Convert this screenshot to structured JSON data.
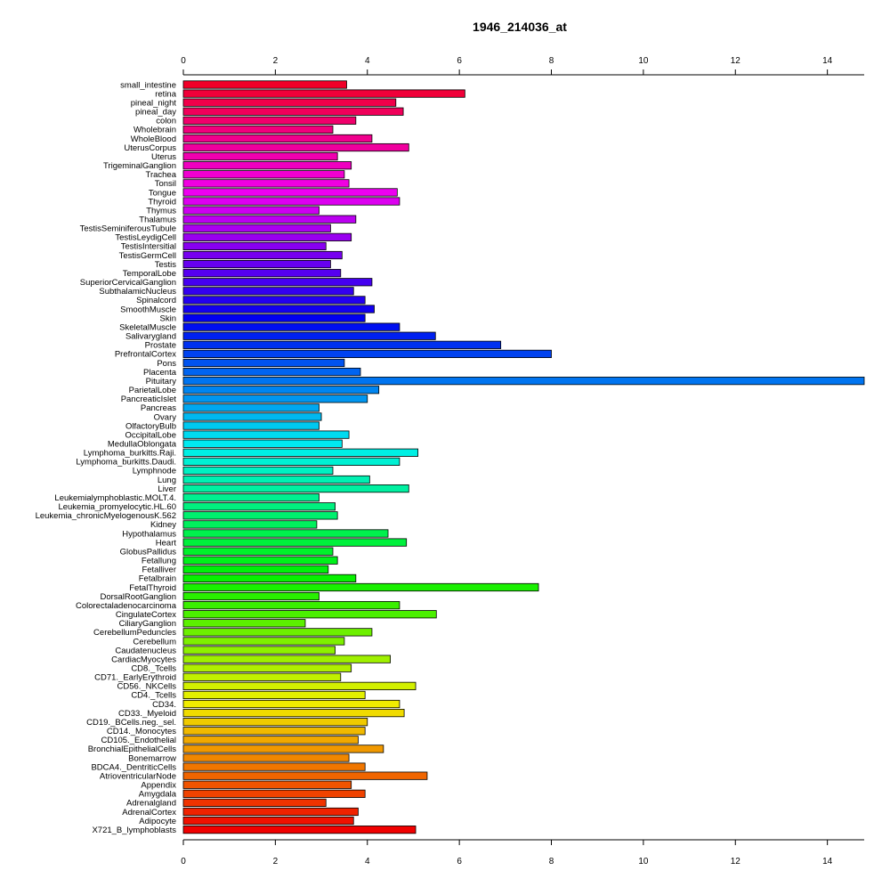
{
  "chart_data": {
    "type": "bar",
    "orientation": "horizontal",
    "title": "1946_214036_at",
    "xlabel": "",
    "ylabel": "",
    "xlim": [
      0,
      14.8
    ],
    "xticks": [
      0,
      2,
      4,
      6,
      8,
      10,
      12,
      14
    ],
    "axes": [
      "top",
      "bottom"
    ],
    "grid": false,
    "categories": [
      "small_intestine",
      "retina",
      "pineal_night",
      "pineal_day",
      "colon",
      "Wholebrain",
      "WholeBlood",
      "UterusCorpus",
      "Uterus",
      "TrigeminalGanglion",
      "Trachea",
      "Tonsil",
      "Tongue",
      "Thyroid",
      "Thymus",
      "Thalamus",
      "TestisSeminiferousTubule",
      "TestisLeydigCell",
      "TestisIntersitial",
      "TestisGermCell",
      "Testis",
      "TemporalLobe",
      "SuperiorCervicalGanglion",
      "SubthalamicNucleus",
      "Spinalcord",
      "SmoothMuscle",
      "Skin",
      "SkeletalMuscle",
      "Salivarygland",
      "Prostate",
      "PrefrontalCortex",
      "Pons",
      "Placenta",
      "Pituitary",
      "ParietalLobe",
      "PancreaticIslet",
      "Pancreas",
      "Ovary",
      "OlfactoryBulb",
      "OccipitalLobe",
      "MedullaOblongata",
      "Lymphoma_burkitts.Raji.",
      "Lymphoma_burkitts.Daudi.",
      "Lymphnode",
      "Lung",
      "Liver",
      "Leukemialymphoblastic.MOLT.4.",
      "Leukemia_promyelocytic.HL.60",
      "Leukemia_chronicMyelogenousK.562",
      "Kidney",
      "Hypothalamus",
      "Heart",
      "GlobusPallidus",
      "Fetallung",
      "Fetalliver",
      "Fetalbrain",
      "FetalThyroid",
      "DorsalRootGanglion",
      "Colorectaladenocarcinoma",
      "CingulateCortex",
      "CiliaryGanglion",
      "CerebellumPeduncles",
      "Cerebellum",
      "Caudatenucleus",
      "CardiacMyocytes",
      "CD8._Tcells",
      "CD71._EarlyErythroid",
      "CD56._NKCells",
      "CD4._Tcells",
      "CD34.",
      "CD33._Myeloid",
      "CD19._BCells.neg._sel.",
      "CD14._Monocytes",
      "CD105._Endothelial",
      "BronchialEpithelialCells",
      "Bonemarrow",
      "BDCA4._DentriticCells",
      "AtrioventricularNode",
      "Appendix",
      "Amygdala",
      "Adrenalgland",
      "AdrenalCortex",
      "Adipocyte",
      "X721_B_lymphoblasts"
    ],
    "values": [
      3.55,
      6.12,
      4.62,
      4.78,
      3.75,
      3.25,
      4.1,
      4.9,
      3.35,
      3.65,
      3.5,
      3.6,
      4.65,
      4.7,
      2.95,
      3.75,
      3.2,
      3.65,
      3.1,
      3.45,
      3.2,
      3.42,
      4.1,
      3.7,
      3.95,
      4.15,
      3.95,
      4.7,
      5.48,
      6.9,
      8.0,
      3.5,
      3.85,
      14.8,
      4.25,
      4.0,
      2.95,
      3.0,
      2.95,
      3.6,
      3.45,
      5.1,
      4.7,
      3.25,
      4.05,
      4.9,
      2.95,
      3.3,
      3.35,
      2.9,
      4.45,
      4.85,
      3.25,
      3.35,
      3.15,
      3.75,
      7.72,
      2.95,
      4.7,
      5.5,
      2.65,
      4.1,
      3.5,
      3.3,
      4.5,
      3.65,
      3.42,
      5.05,
      3.95,
      4.7,
      4.8,
      4.0,
      3.95,
      3.8,
      4.35,
      3.6,
      3.95,
      5.3,
      3.65,
      3.95,
      3.1,
      3.8,
      3.7,
      5.05
    ]
  }
}
